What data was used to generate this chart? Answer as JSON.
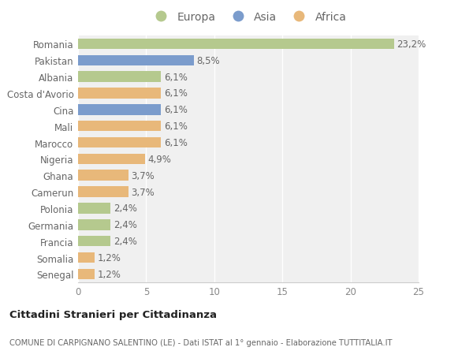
{
  "categories": [
    "Romania",
    "Pakistan",
    "Albania",
    "Costa d'Avorio",
    "Cina",
    "Mali",
    "Marocco",
    "Nigeria",
    "Ghana",
    "Camerun",
    "Polonia",
    "Germania",
    "Francia",
    "Somalia",
    "Senegal"
  ],
  "values": [
    23.2,
    8.5,
    6.1,
    6.1,
    6.1,
    6.1,
    6.1,
    4.9,
    3.7,
    3.7,
    2.4,
    2.4,
    2.4,
    1.2,
    1.2
  ],
  "labels": [
    "23,2%",
    "8,5%",
    "6,1%",
    "6,1%",
    "6,1%",
    "6,1%",
    "6,1%",
    "4,9%",
    "3,7%",
    "3,7%",
    "2,4%",
    "2,4%",
    "2,4%",
    "1,2%",
    "1,2%"
  ],
  "continents": [
    "Europa",
    "Asia",
    "Europa",
    "Africa",
    "Asia",
    "Africa",
    "Africa",
    "Africa",
    "Africa",
    "Africa",
    "Europa",
    "Europa",
    "Europa",
    "Africa",
    "Africa"
  ],
  "colors": {
    "Europa": "#b5c98e",
    "Asia": "#7b9ccc",
    "Africa": "#e8b87a"
  },
  "xlim": [
    0,
    25
  ],
  "xticks": [
    0,
    5,
    10,
    15,
    20,
    25
  ],
  "title": "Cittadini Stranieri per Cittadinanza",
  "subtitle": "COMUNE DI CARPIGNANO SALENTINO (LE) - Dati ISTAT al 1° gennaio - Elaborazione TUTTITALIA.IT",
  "bg_color": "#ffffff",
  "plot_bg_color": "#f0f0f0",
  "grid_color": "#ffffff",
  "label_fontsize": 8.5,
  "tick_fontsize": 8.5,
  "bar_height": 0.65
}
